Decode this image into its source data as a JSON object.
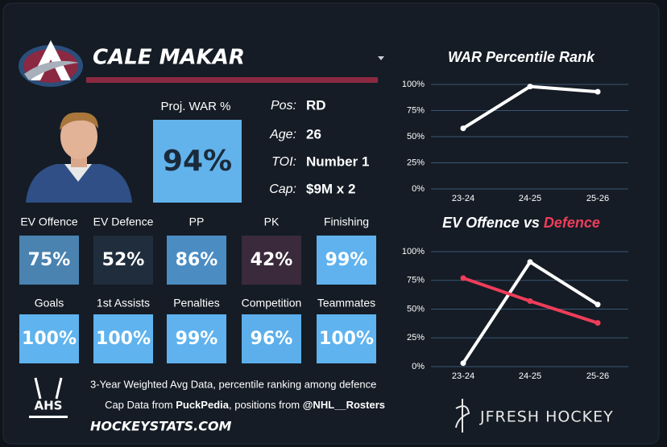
{
  "player": {
    "name": "CALE MAKAR",
    "proj_war_label": "Proj. WAR %",
    "proj_war": "94%",
    "proj_war_color": "#62b3ec"
  },
  "info": [
    {
      "key": "Pos:",
      "value": "RD"
    },
    {
      "key": "Age:",
      "value": "26"
    },
    {
      "key": "TOI:",
      "value": "Number 1"
    },
    {
      "key": "Cap:",
      "value": "$9M x 2"
    }
  ],
  "tiles": [
    {
      "label": "EV Offence",
      "value": "75%",
      "color": "#4a82b0"
    },
    {
      "label": "EV Defence",
      "value": "52%",
      "color": "#1f2d3d"
    },
    {
      "label": "PP",
      "value": "86%",
      "color": "#4b8cc3"
    },
    {
      "label": "PK",
      "value": "42%",
      "color": "#3a2a3b"
    },
    {
      "label": "Finishing",
      "value": "99%",
      "color": "#5fb2ee"
    },
    {
      "label": "Goals",
      "value": "100%",
      "color": "#5fb3ee"
    },
    {
      "label": "1st Assists",
      "value": "100%",
      "color": "#5fb3ee"
    },
    {
      "label": "Penalties",
      "value": "99%",
      "color": "#5fb2ee"
    },
    {
      "label": "Competition",
      "value": "96%",
      "color": "#5cafea"
    },
    {
      "label": "Teammates",
      "value": "100%",
      "color": "#5fb3ee"
    }
  ],
  "footer": {
    "ahs": "AHS",
    "line1": "3-Year Weighted Avg Data, percentile ranking among defence",
    "line2": [
      "Cap Data from ",
      "PuckPedia",
      ", positions from ",
      "@NHL__Rosters"
    ],
    "site": "HOCKEYSTATS.COM",
    "brand": "JFRESH HOCKEY"
  },
  "chart_data": [
    {
      "type": "line",
      "title_parts": [
        "WAR Percentile Rank"
      ],
      "categories": [
        "23-24",
        "24-25",
        "25-26"
      ],
      "series": [
        {
          "color": "#ffffff",
          "values": [
            58,
            98,
            93
          ]
        }
      ],
      "ylim": [
        0,
        100
      ],
      "yticks": [
        {
          "value": 0,
          "label": "0%"
        },
        {
          "value": 25,
          "label": "25%"
        },
        {
          "value": 50,
          "label": "50%"
        },
        {
          "value": 75,
          "label": "75%"
        },
        {
          "value": 100,
          "label": "100%"
        }
      ],
      "grid": true
    },
    {
      "type": "line",
      "title_parts": [
        "EV Offence vs",
        "Defence"
      ],
      "categories": [
        "23-24",
        "24-25",
        "25-26"
      ],
      "series": [
        {
          "color": "#ffffff",
          "values": [
            3,
            91,
            54
          ]
        },
        {
          "color": "#ef3d5a",
          "values": [
            77,
            57,
            38
          ]
        }
      ],
      "ylim": [
        0,
        100
      ],
      "yticks": [
        {
          "value": 0,
          "label": "0%"
        },
        {
          "value": 25,
          "label": "25%"
        },
        {
          "value": 50,
          "label": "50%"
        },
        {
          "value": 75,
          "label": "75%"
        },
        {
          "value": 100,
          "label": "100%"
        }
      ],
      "grid": true
    }
  ]
}
